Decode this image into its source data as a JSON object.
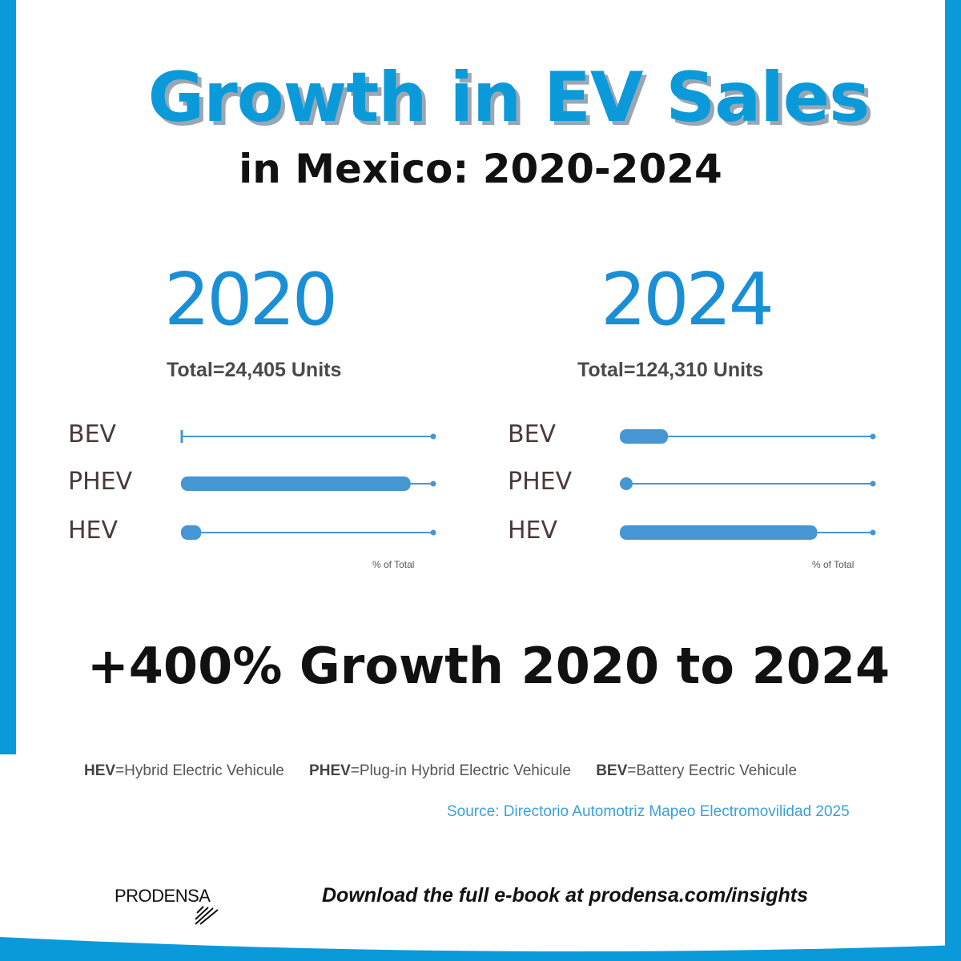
{
  "title": "Growth in EV Sales",
  "subtitle": "in Mexico: 2020-2024",
  "colors": {
    "brand_blue": "#0a9ad9",
    "bar_blue": "#4596d3",
    "title_shadow": "#9aa7b3"
  },
  "chart_data": [
    {
      "type": "bar",
      "title": "2020",
      "subtitle": "Total=24,405 Units",
      "categories": [
        "BEV",
        "PHEV",
        "HEV"
      ],
      "values": [
        1,
        91,
        8
      ],
      "xlabel": "% of Total",
      "xlim": [
        0,
        100
      ]
    },
    {
      "type": "bar",
      "title": "2024",
      "subtitle": "Total=124,310 Units",
      "categories": [
        "BEV",
        "PHEV",
        "HEV"
      ],
      "values": [
        19,
        3,
        78
      ],
      "xlabel": "% of Total",
      "xlim": [
        0,
        100
      ]
    }
  ],
  "growth_text": "+400% Growth 2020 to 2024",
  "legend": [
    {
      "abbr": "HEV",
      "def": "=Hybrid Electric Vehicule"
    },
    {
      "abbr": "PHEV",
      "def": "=Plug-in Hybrid Electric Vehicule"
    },
    {
      "abbr": "BEV",
      "def": "=Battery Eectric Vehicule"
    }
  ],
  "source": "Source: Directorio Automotriz Mapeo Electromovilidad 2025",
  "logo": "PRODENSA",
  "cta": "Download the full e-book at prodensa.com/insights"
}
